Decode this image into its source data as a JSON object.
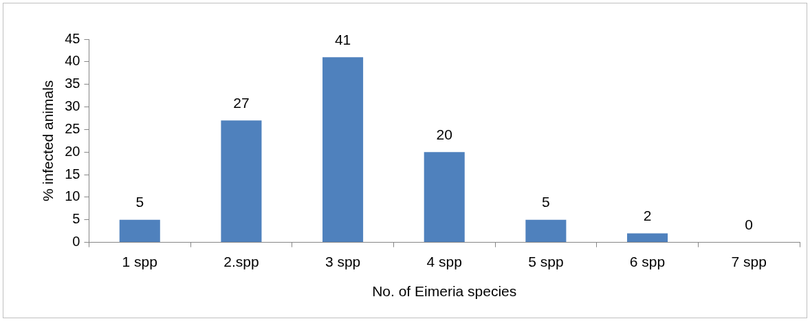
{
  "chart_data": {
    "type": "bar",
    "xlabel": "No. of Eimeria species",
    "ylabel": "% infected animals",
    "categories": [
      "1 spp",
      "2.spp",
      "3 spp",
      "4 spp",
      "5 spp",
      "6 spp",
      "7 spp"
    ],
    "values": [
      5,
      27,
      41,
      20,
      5,
      2,
      0
    ],
    "color": "#4f81bd",
    "ylim": [
      0,
      45
    ],
    "yticks": [
      0,
      5,
      10,
      15,
      20,
      25,
      30,
      35,
      40,
      45
    ],
    "grid": false,
    "legend": false,
    "data_labels": true
  }
}
